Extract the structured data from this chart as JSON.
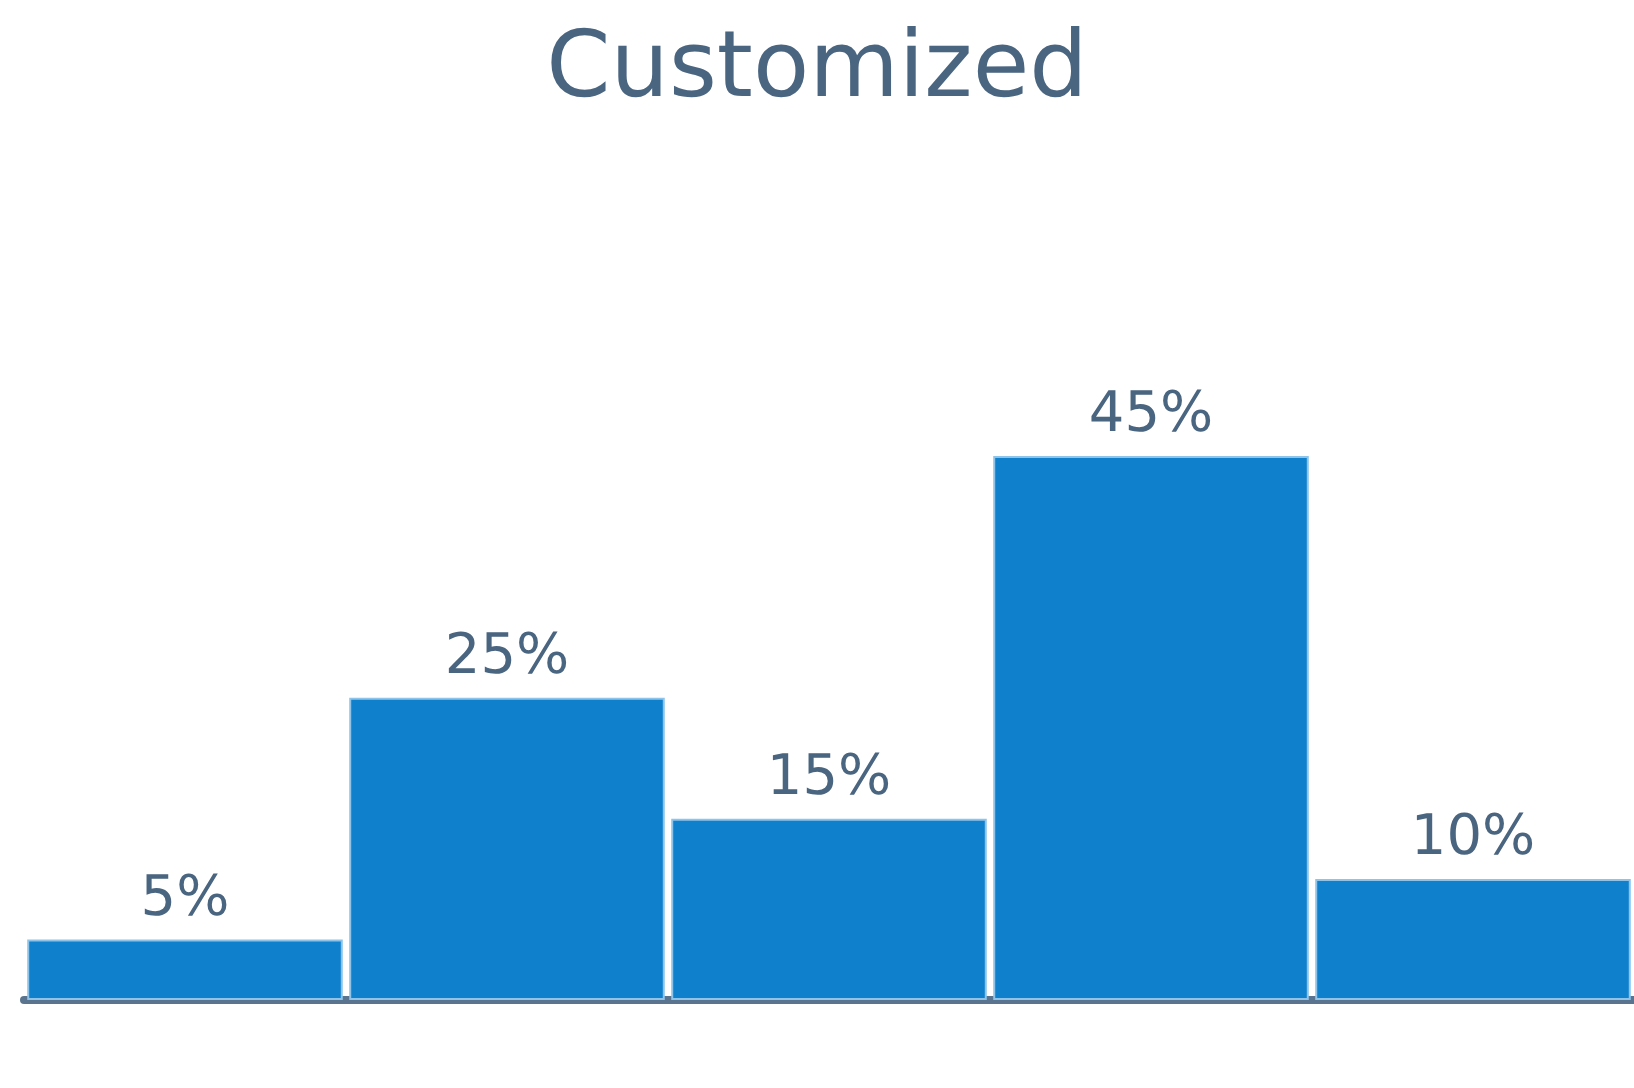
{
  "chart_data": {
    "type": "bar",
    "title": "Customized",
    "categories": [
      null,
      null,
      null,
      null,
      null
    ],
    "values": [
      5,
      25,
      15,
      45,
      10
    ],
    "value_labels": [
      "5%",
      "25%",
      "15%",
      "45%",
      "10%"
    ],
    "color": "#0f80cc"
  }
}
